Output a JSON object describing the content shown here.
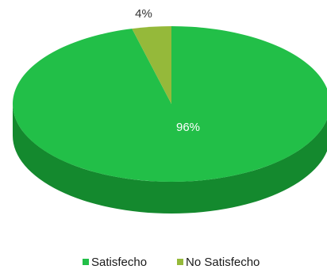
{
  "chart_data": {
    "type": "pie",
    "style": "3d",
    "title": "",
    "categories": [
      "Satisfecho",
      "No Satisfecho"
    ],
    "values": [
      96,
      4
    ],
    "data_labels": [
      "96%",
      "4%"
    ],
    "legend": {
      "position": "bottom",
      "entries": [
        "Satisfecho",
        "No Satisfecho"
      ]
    }
  },
  "colors": {
    "satisfecho_top": "#22bf48",
    "satisfecho_side": "#14892e",
    "no_satisfecho_top": "#95b93a",
    "no_satisfecho_side": "#6f8c26",
    "label_inside": "#ffffff",
    "label_outside": "#333333"
  }
}
